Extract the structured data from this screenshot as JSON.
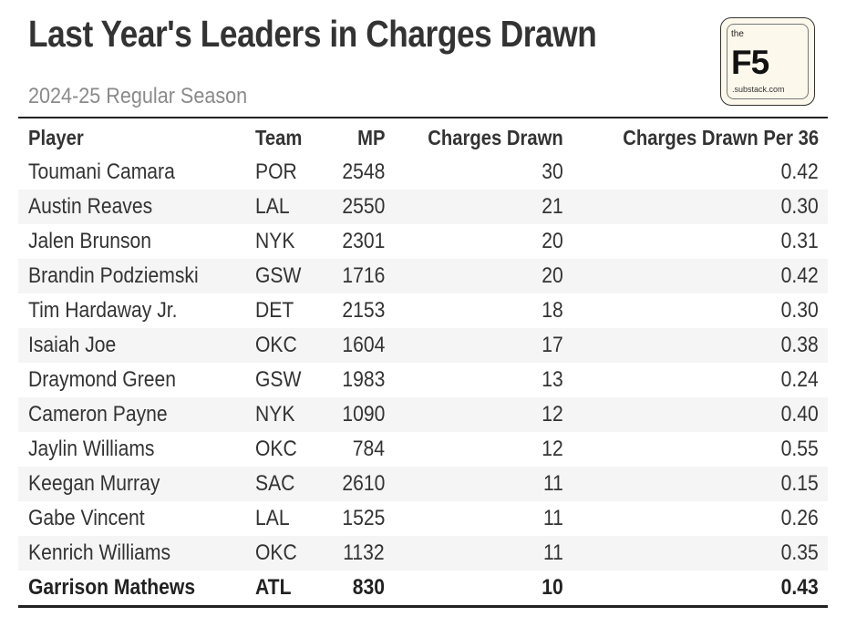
{
  "header": {
    "title": "Last Year's Leaders in Charges Drawn",
    "subtitle": "2024-25 Regular Season"
  },
  "logo": {
    "the": "the",
    "brand": "F5",
    "domain": ".substack.com"
  },
  "chart_data": {
    "type": "table",
    "title": "Last Year's Leaders in Charges Drawn",
    "subtitle": "2024-25 Regular Season",
    "columns": [
      "Player",
      "Team",
      "MP",
      "Charges Drawn",
      "Charges Drawn Per 36"
    ],
    "rows": [
      {
        "player": "Toumani Camara",
        "team": "POR",
        "mp": "2548",
        "charges": "30",
        "per36": "0.42",
        "bold": false
      },
      {
        "player": "Austin Reaves",
        "team": "LAL",
        "mp": "2550",
        "charges": "21",
        "per36": "0.30",
        "bold": false
      },
      {
        "player": "Jalen Brunson",
        "team": "NYK",
        "mp": "2301",
        "charges": "20",
        "per36": "0.31",
        "bold": false
      },
      {
        "player": "Brandin Podziemski",
        "team": "GSW",
        "mp": "1716",
        "charges": "20",
        "per36": "0.42",
        "bold": false
      },
      {
        "player": "Tim Hardaway Jr.",
        "team": "DET",
        "mp": "2153",
        "charges": "18",
        "per36": "0.30",
        "bold": false
      },
      {
        "player": "Isaiah Joe",
        "team": "OKC",
        "mp": "1604",
        "charges": "17",
        "per36": "0.38",
        "bold": false
      },
      {
        "player": "Draymond Green",
        "team": "GSW",
        "mp": "1983",
        "charges": "13",
        "per36": "0.24",
        "bold": false
      },
      {
        "player": "Cameron Payne",
        "team": "NYK",
        "mp": "1090",
        "charges": "12",
        "per36": "0.40",
        "bold": false
      },
      {
        "player": "Jaylin Williams",
        "team": "OKC",
        "mp": "784",
        "charges": "12",
        "per36": "0.55",
        "bold": false
      },
      {
        "player": "Keegan Murray",
        "team": "SAC",
        "mp": "2610",
        "charges": "11",
        "per36": "0.15",
        "bold": false
      },
      {
        "player": "Gabe Vincent",
        "team": "LAL",
        "mp": "1525",
        "charges": "11",
        "per36": "0.26",
        "bold": false
      },
      {
        "player": "Kenrich Williams",
        "team": "OKC",
        "mp": "1132",
        "charges": "11",
        "per36": "0.35",
        "bold": false
      },
      {
        "player": "Garrison Mathews",
        "team": "ATL",
        "mp": "830",
        "charges": "10",
        "per36": "0.43",
        "bold": true
      }
    ]
  }
}
